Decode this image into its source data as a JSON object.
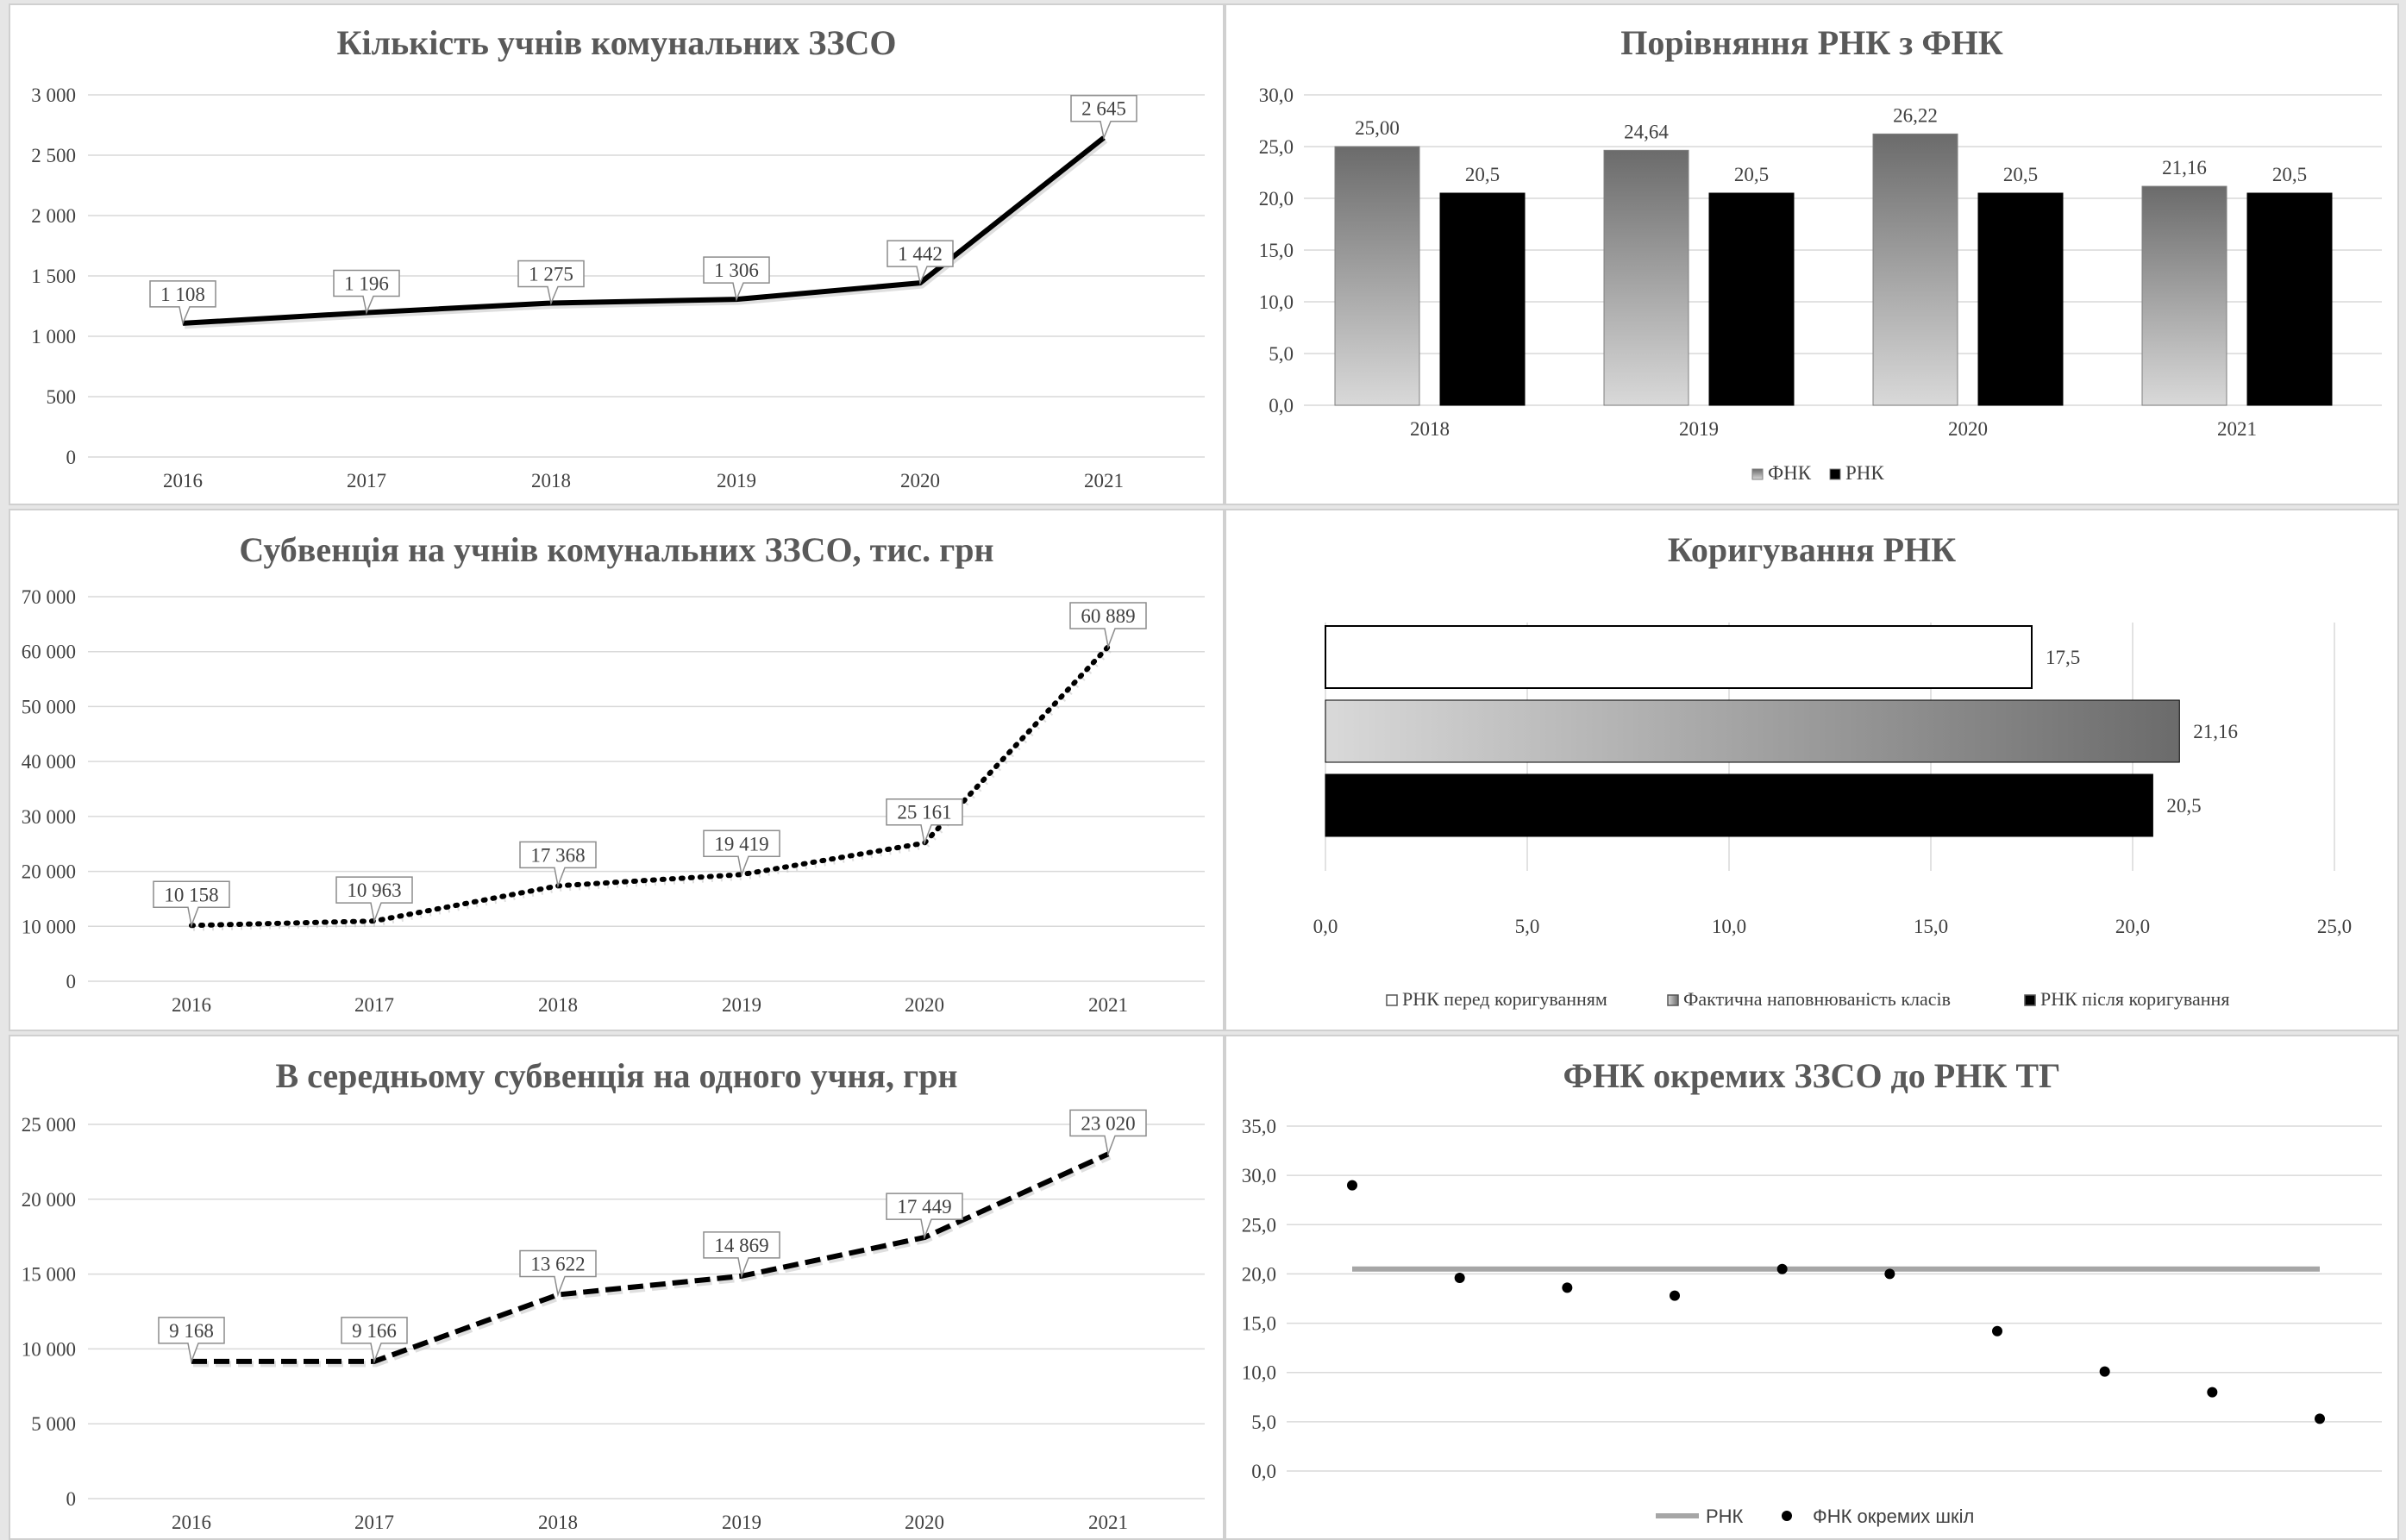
{
  "chart_data": [
    {
      "id": "students",
      "type": "line",
      "title": "Кількість учнів комунальних ЗЗСО",
      "categories": [
        "2016",
        "2017",
        "2018",
        "2019",
        "2020",
        "2021"
      ],
      "series": [
        {
          "values": [
            1108,
            1196,
            1275,
            1306,
            1442,
            2645
          ],
          "labels": [
            "1 108",
            "1 196",
            "1 275",
            "1 306",
            "1 442",
            "2 645"
          ],
          "style": "solid"
        }
      ],
      "ylim": [
        0,
        3000
      ],
      "yticks": [
        0,
        500,
        1000,
        1500,
        2000,
        2500,
        3000
      ],
      "ytick_labels": [
        "0",
        "500",
        "1 000",
        "1 500",
        "2 000",
        "2 500",
        "3 000"
      ],
      "grid": true
    },
    {
      "id": "compare",
      "type": "bar",
      "title": "Порівняння РНК з ФНК",
      "categories": [
        "2018",
        "2019",
        "2020",
        "2021"
      ],
      "series": [
        {
          "name": "ФНК",
          "values": [
            25.0,
            24.64,
            26.22,
            21.16
          ],
          "labels": [
            "25,00",
            "24,64",
            "26,22",
            "21,16"
          ],
          "fill": "gradient-gray"
        },
        {
          "name": "РНК",
          "values": [
            20.5,
            20.5,
            20.5,
            20.5
          ],
          "labels": [
            "20,5",
            "20,5",
            "20,5",
            "20,5"
          ],
          "fill": "#000000"
        }
      ],
      "ylim": [
        0,
        30
      ],
      "yticks": [
        0,
        5,
        10,
        15,
        20,
        25,
        30
      ],
      "ytick_labels": [
        "0,0",
        "5,0",
        "10,0",
        "15,0",
        "20,0",
        "25,0",
        "30,0"
      ],
      "legend": "bottom",
      "grid": true
    },
    {
      "id": "subvention",
      "type": "line",
      "title": "Субвенція на учнів комунальних ЗЗСО, тис. грн",
      "categories": [
        "2016",
        "2017",
        "2018",
        "2019",
        "2020",
        "2021"
      ],
      "series": [
        {
          "values": [
            10158,
            10963,
            17368,
            19419,
            25161,
            60889
          ],
          "labels": [
            "10 158",
            "10 963",
            "17 368",
            "19 419",
            "25 161",
            "60 889"
          ],
          "style": "dotted"
        }
      ],
      "ylim": [
        0,
        70000
      ],
      "yticks": [
        0,
        10000,
        20000,
        30000,
        40000,
        50000,
        60000,
        70000
      ],
      "ytick_labels": [
        "0",
        "10 000",
        "20 000",
        "30 000",
        "40 000",
        "50 000",
        "60 000",
        "70 000"
      ],
      "grid": true
    },
    {
      "id": "correction",
      "type": "bar",
      "orientation": "horizontal",
      "title": "Коригування РНК",
      "series": [
        {
          "name": "РНК перед коригуванням",
          "values": [
            17.5
          ],
          "labels": [
            "17,5"
          ],
          "fill": "#ffffff"
        },
        {
          "name": "Фактична наповнюваність класів",
          "values": [
            21.16
          ],
          "labels": [
            "21,16"
          ],
          "fill": "gradient-gray"
        },
        {
          "name": "РНК після коригування",
          "values": [
            20.5
          ],
          "labels": [
            "20,5"
          ],
          "fill": "#000000"
        }
      ],
      "xlim": [
        0,
        25
      ],
      "xticks": [
        0,
        5,
        10,
        15,
        20,
        25
      ],
      "xtick_labels": [
        "0,0",
        "5,0",
        "10,0",
        "15,0",
        "20,0",
        "25,0"
      ],
      "legend": "bottom",
      "grid": true
    },
    {
      "id": "perstudent",
      "type": "line",
      "title": "В середньому субвенція на одного учня, грн",
      "categories": [
        "2016",
        "2017",
        "2018",
        "2019",
        "2020",
        "2021"
      ],
      "series": [
        {
          "values": [
            9168,
            9166,
            13622,
            14869,
            17449,
            23020
          ],
          "labels": [
            "9 168",
            "9 166",
            "13 622",
            "14 869",
            "17 449",
            "23 020"
          ],
          "style": "dashed"
        }
      ],
      "ylim": [
        0,
        25000
      ],
      "yticks": [
        0,
        5000,
        10000,
        15000,
        20000,
        25000
      ],
      "ytick_labels": [
        "0",
        "5 000",
        "10 000",
        "15 000",
        "20 000",
        "25 000"
      ],
      "grid": true
    },
    {
      "id": "schools",
      "type": "scatter",
      "title": "ФНК окремих ЗЗСО до РНК ТГ",
      "x": [
        1,
        2,
        3,
        4,
        5,
        6,
        7,
        8,
        9,
        10
      ],
      "series": [
        {
          "name": "РНК",
          "kind": "line",
          "values": [
            20.5,
            20.5,
            20.5,
            20.5,
            20.5,
            20.5,
            20.5,
            20.5,
            20.5,
            20.5
          ],
          "color": "#a6a6a6"
        },
        {
          "name": "ФНК окремих шкіл",
          "kind": "points",
          "values": [
            29.0,
            19.6,
            18.6,
            17.8,
            20.5,
            20.0,
            14.2,
            10.1,
            8.0,
            5.3
          ],
          "color": "#000000"
        }
      ],
      "ylim": [
        0,
        35
      ],
      "yticks": [
        0,
        5,
        10,
        15,
        20,
        25,
        30,
        35
      ],
      "ytick_labels": [
        "0,0",
        "5,0",
        "10,0",
        "15,0",
        "20,0",
        "25,0",
        "30,0",
        "35,0"
      ],
      "legend": "bottom",
      "grid": true
    }
  ]
}
